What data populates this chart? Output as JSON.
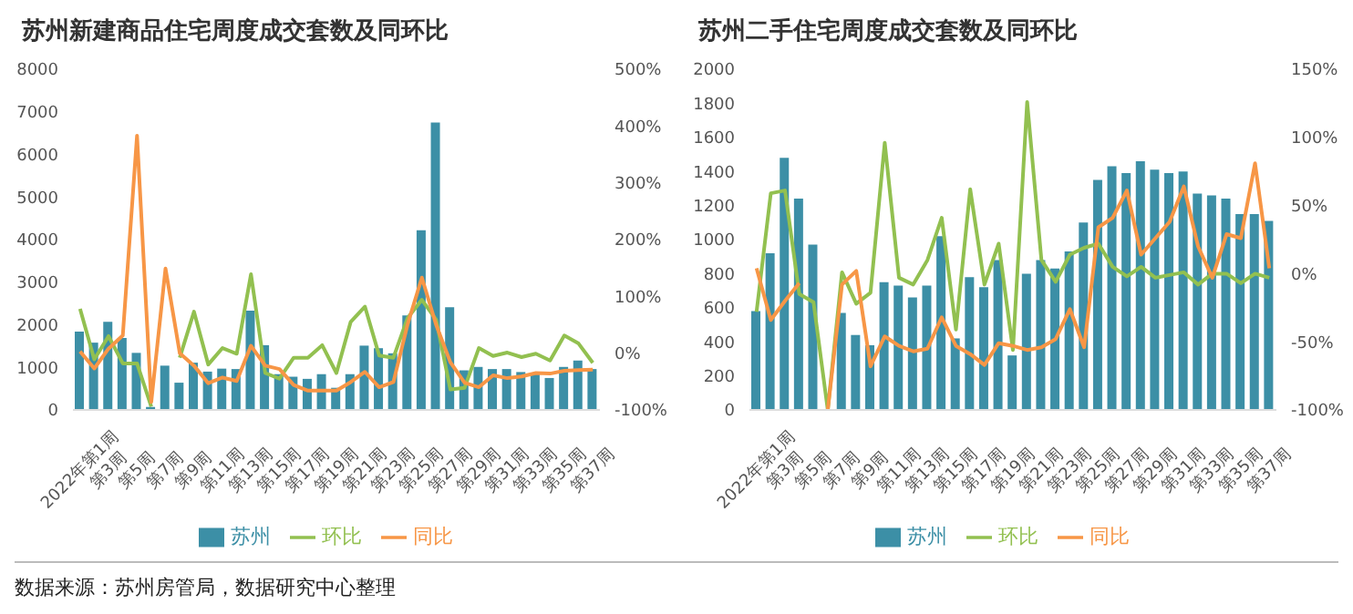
{
  "chart_data": [
    {
      "type": "bar",
      "title": "苏州新建商品住宅周度成交套数及同环比",
      "categories": [
        "2022年第1周",
        null,
        "第3周",
        null,
        "第5周",
        null,
        "第7周",
        null,
        "第9周",
        null,
        "第11周",
        null,
        "第13周",
        null,
        "第15周",
        null,
        "第17周",
        null,
        "第19周",
        null,
        "第21周",
        null,
        "第23周",
        null,
        "第25周",
        null,
        "第27周",
        null,
        "第29周",
        null,
        "第31周",
        null,
        "第33周",
        null,
        "第35周",
        null,
        "第37周"
      ],
      "series": [
        {
          "name": "苏州",
          "color": "#3c8fa6",
          "values": [
            1840,
            1580,
            2070,
            1690,
            1340,
            70,
            1040,
            640,
            1110,
            900,
            970,
            960,
            2330,
            1520,
            840,
            780,
            730,
            840,
            520,
            840,
            1510,
            1450,
            1330,
            2220,
            4220,
            6750,
            2410,
            930,
            1010,
            960,
            960,
            890,
            860,
            750,
            1010,
            1160,
            960
          ]
        },
        {
          "name": "环比",
          "type": "line",
          "axis": "y2",
          "color": "#92c050",
          "values": [
            78,
            -11,
            30,
            -18,
            -18,
            -94,
            null,
            -8,
            73,
            -20,
            9,
            -1,
            139,
            -35,
            -45,
            -8,
            -8,
            14,
            -35,
            55,
            82,
            -4,
            -8,
            62,
            94,
            59,
            -64,
            -61,
            9,
            -5,
            1,
            -7,
            -1,
            -13,
            31,
            17,
            -17
          ]
        },
        {
          "name": "同比",
          "type": "line",
          "axis": "y2",
          "color": "#f79646",
          "values": [
            3,
            -27,
            8,
            31,
            383,
            -86,
            149,
            0,
            -22,
            -53,
            -43,
            -49,
            13,
            -22,
            -28,
            -56,
            -66,
            -66,
            -66,
            -51,
            -33,
            -60,
            -51,
            51,
            133,
            50,
            -16,
            -52,
            -60,
            -39,
            -44,
            -41,
            -35,
            -36,
            -31,
            -30,
            -29
          ]
        }
      ],
      "ylim": [
        0,
        8000
      ],
      "yticks": [
        0,
        1000,
        2000,
        3000,
        4000,
        5000,
        6000,
        7000,
        8000
      ],
      "y2lim": [
        -100,
        500
      ],
      "y2ticks": [
        {
          "value": -100,
          "label": "-100%"
        },
        {
          "value": 0,
          "label": "0%"
        },
        {
          "value": 100,
          "label": "100%"
        },
        {
          "value": 200,
          "label": "200%"
        },
        {
          "value": 300,
          "label": "300%"
        },
        {
          "value": 400,
          "label": "400%"
        },
        {
          "value": 500,
          "label": "500%"
        }
      ],
      "legend": "bottom",
      "grid": false,
      "annotations": [
        "数据来源：苏州房管局，数据研究中心整理"
      ]
    },
    {
      "type": "bar",
      "title": "苏州二手住宅周度成交套数及同环比",
      "categories": [
        "2022年第1周",
        null,
        "第3周",
        null,
        "第5周",
        null,
        "第7周",
        null,
        "第9周",
        null,
        "第11周",
        null,
        "第13周",
        null,
        "第15周",
        null,
        "第17周",
        null,
        "第19周",
        null,
        "第21周",
        null,
        "第23周",
        null,
        "第25周",
        null,
        "第27周",
        null,
        "第29周",
        null,
        "第31周",
        null,
        "第33周",
        null,
        "第35周",
        null,
        "第37周"
      ],
      "series": [
        {
          "name": "苏州",
          "color": "#3c8fa6",
          "values": [
            580,
            920,
            1480,
            1240,
            970,
            0,
            570,
            440,
            380,
            750,
            730,
            660,
            730,
            1020,
            420,
            780,
            720,
            880,
            320,
            800,
            880,
            830,
            930,
            1100,
            1350,
            1430,
            1390,
            1460,
            1410,
            1390,
            1400,
            1270,
            1260,
            1240,
            1150,
            1150,
            1110
          ]
        },
        {
          "name": "环比",
          "type": "line",
          "axis": "y2",
          "color": "#92c050",
          "values": [
            -28,
            59,
            61,
            -15,
            -21,
            -100,
            1,
            -22,
            -14,
            96,
            -3,
            -8,
            10,
            41,
            -41,
            62,
            -8,
            22,
            -56,
            126,
            10,
            -6,
            14,
            19,
            22,
            5,
            -2,
            5,
            -3,
            -1,
            1,
            -8,
            0,
            0,
            -7,
            0,
            -3
          ]
        },
        {
          "name": "同比",
          "type": "line",
          "axis": "y2",
          "color": "#f79646",
          "values": [
            4,
            -34,
            -20,
            -7,
            null,
            -100,
            -8,
            2,
            -68,
            -46,
            -53,
            -57,
            -55,
            -32,
            -53,
            -59,
            -67,
            -51,
            -53,
            -56,
            -54,
            -48,
            -26,
            -54,
            34,
            41,
            61,
            14,
            26,
            38,
            64,
            20,
            -3,
            29,
            26,
            81,
            4
          ]
        }
      ],
      "ylim": [
        0,
        2000
      ],
      "yticks": [
        0,
        200,
        400,
        600,
        800,
        1000,
        1200,
        1400,
        1600,
        1800,
        2000
      ],
      "y2lim": [
        -100,
        150
      ],
      "y2ticks": [
        {
          "value": -100,
          "label": "-100%"
        },
        {
          "value": -50,
          "label": "-50%"
        },
        {
          "value": 0,
          "label": "0%"
        },
        {
          "value": 50,
          "label": "50%"
        },
        {
          "value": 100,
          "label": "100%"
        },
        {
          "value": 150,
          "label": "150%"
        }
      ],
      "legend": "bottom",
      "grid": false
    }
  ]
}
